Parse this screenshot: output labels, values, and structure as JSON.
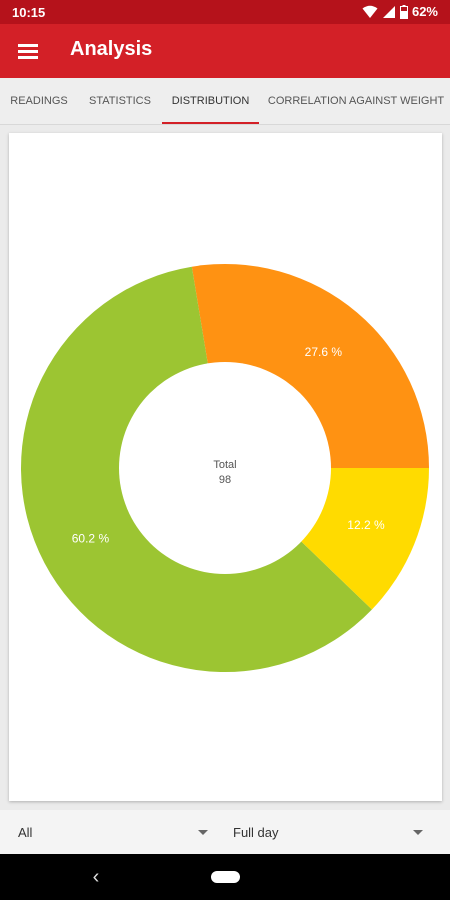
{
  "status_bar": {
    "time": "10:15",
    "battery": "62%",
    "icons": [
      "wifi-icon",
      "signal-icon",
      "battery-icon"
    ]
  },
  "app_bar": {
    "title": "Analysis",
    "menu_icon": "menu-icon"
  },
  "tabs": [
    {
      "label": "READINGS",
      "active": false
    },
    {
      "label": "STATISTICS",
      "active": false
    },
    {
      "label": "DISTRIBUTION",
      "active": true
    },
    {
      "label": "CORRELATION AGAINST WEIGHT",
      "active": false
    }
  ],
  "colors": {
    "accent": "#d32027",
    "status": "#b5121b"
  },
  "chart_data": {
    "type": "pie",
    "variant": "donut",
    "center_label": {
      "title": "Total",
      "value": "98"
    },
    "slices": [
      {
        "value": 27.6,
        "label": "27.6 %",
        "color": "#ff9212"
      },
      {
        "value": 60.2,
        "label": "60.2 %",
        "color": "#9cc532"
      },
      {
        "value": 12.2,
        "label": "12.2 %",
        "color": "#ffdb00"
      }
    ]
  },
  "filters": {
    "group": {
      "value": "All",
      "icon": "dropdown-arrow-icon"
    },
    "period": {
      "value": "Full day",
      "icon": "dropdown-arrow-icon"
    }
  },
  "nav_bar": {
    "back_icon": "back-icon",
    "home_icon": "home-pill-icon"
  }
}
